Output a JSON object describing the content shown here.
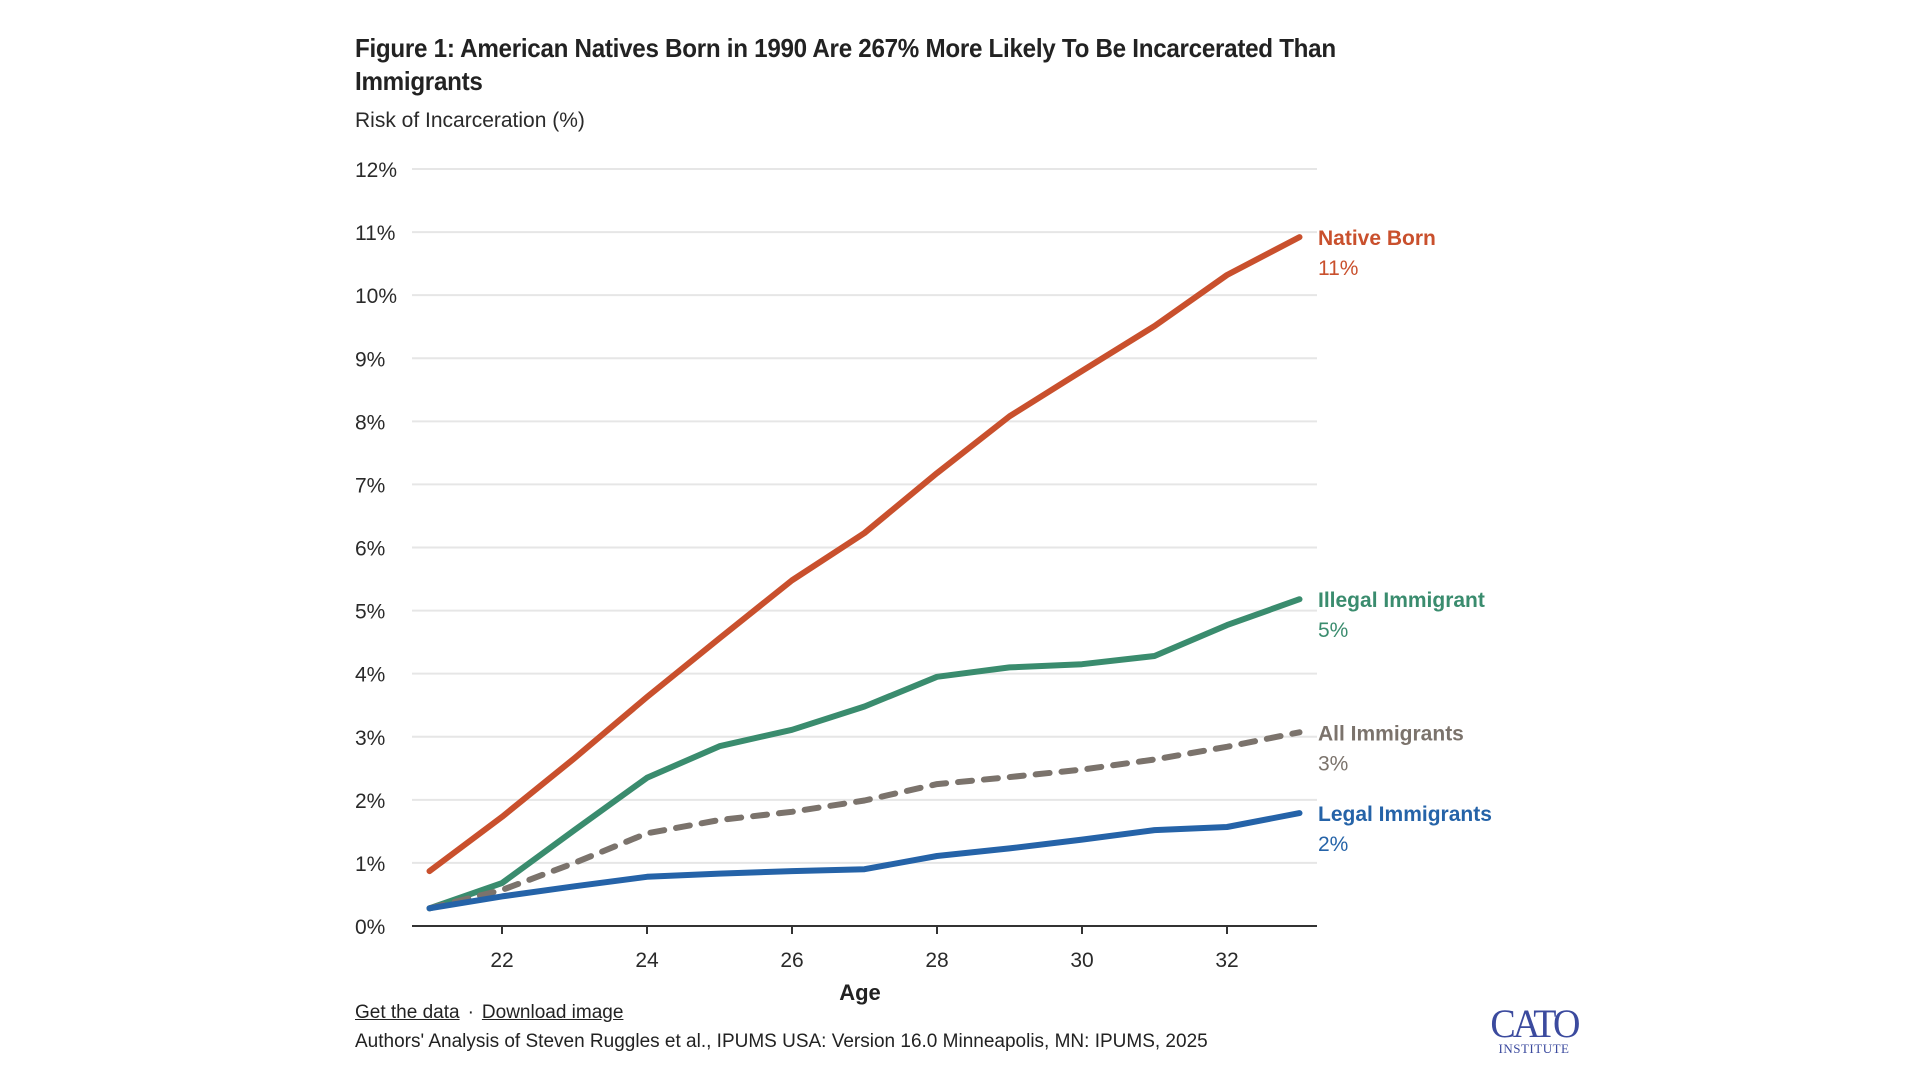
{
  "title": "Figure 1: American Natives Born in 1990 Are 267% More Likely To Be Incarcerated Than Immigrants",
  "links": {
    "get_data": "Get the data",
    "separator": "·",
    "download_image": "Download image"
  },
  "source": "Authors' Analysis of Steven Ruggles et al., IPUMS USA: Version 16.0 Minneapolis, MN: IPUMS, 2025",
  "logo": {
    "main": "CATO",
    "sub": "INSTITUTE"
  },
  "chart_data": {
    "type": "line",
    "title": "Figure 1: American Natives Born in 1990 Are 267% More Likely To Be Incarcerated Than Immigrants",
    "xlabel": "Age",
    "ylabel": "Risk of Incarceration (%)",
    "x": [
      21,
      22,
      23,
      24,
      25,
      26,
      27,
      28,
      29,
      30,
      31,
      32,
      33
    ],
    "xlim": [
      21,
      33
    ],
    "ylim": [
      0,
      12
    ],
    "x_ticks": [
      22,
      24,
      26,
      28,
      30,
      32
    ],
    "y_ticks": [
      0,
      1,
      2,
      3,
      4,
      5,
      6,
      7,
      8,
      9,
      10,
      11,
      12
    ],
    "y_tick_labels": [
      "0%",
      "1%",
      "2%",
      "3%",
      "4%",
      "5%",
      "6%",
      "7%",
      "8%",
      "9%",
      "10%",
      "11%",
      "12%"
    ],
    "grid": true,
    "legend": "inline-right",
    "series": [
      {
        "name": "Native Born",
        "end_label": "11%",
        "color": "#c9502d",
        "dashed": false,
        "values": [
          0.87,
          1.73,
          2.66,
          3.63,
          4.56,
          5.48,
          6.23,
          7.18,
          8.08,
          8.8,
          9.51,
          10.32,
          10.92
        ]
      },
      {
        "name": "Illegal Immigrant",
        "end_label": "5%",
        "color": "#3a8c6e",
        "dashed": false,
        "values": [
          0.28,
          0.68,
          1.52,
          2.35,
          2.85,
          3.11,
          3.48,
          3.95,
          4.1,
          4.15,
          4.28,
          4.77,
          5.18
        ]
      },
      {
        "name": "All Immigrants",
        "end_label": "3%",
        "color": "#7b736c",
        "dashed": true,
        "values": [
          0.28,
          0.57,
          1.0,
          1.47,
          1.68,
          1.81,
          1.99,
          2.25,
          2.36,
          2.48,
          2.64,
          2.84,
          3.07
        ]
      },
      {
        "name": "Legal Immigrants",
        "end_label": "2%",
        "color": "#2563a8",
        "dashed": false,
        "values": [
          0.28,
          0.47,
          0.63,
          0.78,
          0.83,
          0.87,
          0.9,
          1.11,
          1.23,
          1.37,
          1.52,
          1.57,
          1.79
        ]
      }
    ]
  }
}
